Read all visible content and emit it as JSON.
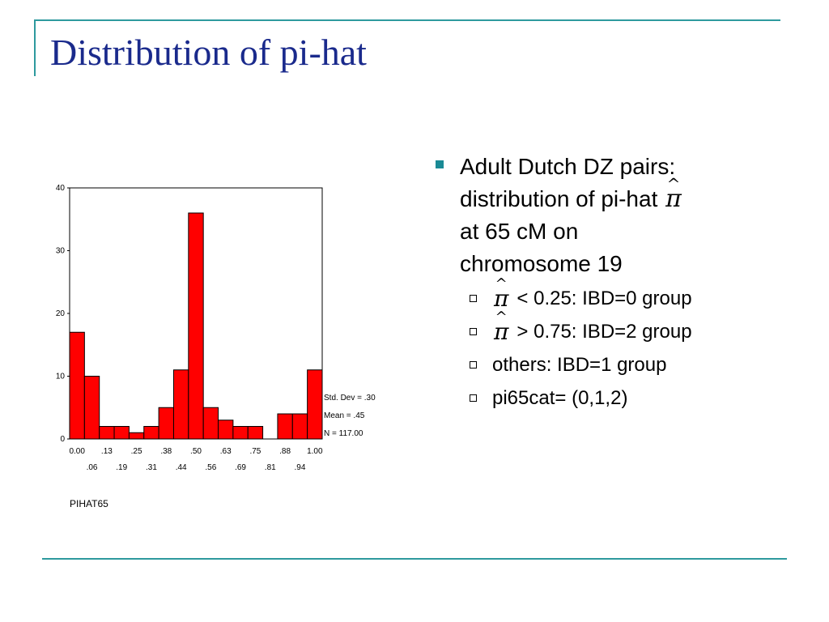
{
  "theme": {
    "title_color": "#1a2a8c",
    "rule_color": "#2e9a9e",
    "bullet_color": "#1a8a95",
    "bar_fill": "#ff0000",
    "bar_stroke": "#000000"
  },
  "slide": {
    "title": "Distribution of pi-hat"
  },
  "bullets": {
    "main_lines": [
      "Adult Dutch DZ pairs:",
      "distribution of pi-hat",
      "at 65 cM on",
      "chromosome 19"
    ],
    "symbol": "π",
    "hat": "^",
    "sub": [
      {
        "text": "< 0.25: IBD=0 group",
        "has_symbol": true
      },
      {
        "text": "> 0.75: IBD=2 group",
        "has_symbol": true
      },
      {
        "text": "others: IBD=1 group",
        "has_symbol": false
      },
      {
        "text": "pi65cat= (0,1,2)",
        "has_symbol": false
      }
    ]
  },
  "chart_data": {
    "type": "bar",
    "title": "",
    "xlabel": "PIHAT65",
    "ylabel": "",
    "ylim": [
      0,
      40
    ],
    "y_ticks": [
      0,
      10,
      20,
      30,
      40
    ],
    "categories": [
      "0.00",
      ".06",
      ".13",
      ".19",
      ".25",
      ".31",
      ".38",
      ".44",
      ".50",
      ".56",
      ".63",
      ".69",
      ".75",
      ".81",
      ".88",
      ".94",
      "1.00"
    ],
    "values": [
      17,
      10,
      2,
      2,
      1,
      2,
      5,
      11,
      36,
      5,
      3,
      2,
      2,
      0,
      4,
      4,
      11
    ],
    "tick_labels_upper": [
      "0.00",
      ".13",
      ".25",
      ".38",
      ".50",
      ".63",
      ".75",
      ".88",
      "1.00"
    ],
    "tick_labels_lower": [
      ".06",
      ".19",
      ".31",
      ".44",
      ".56",
      ".69",
      ".81",
      ".94"
    ],
    "stats": [
      "Std. Dev = .30",
      "Mean = .45",
      "N = 117.00"
    ],
    "grid": false
  }
}
